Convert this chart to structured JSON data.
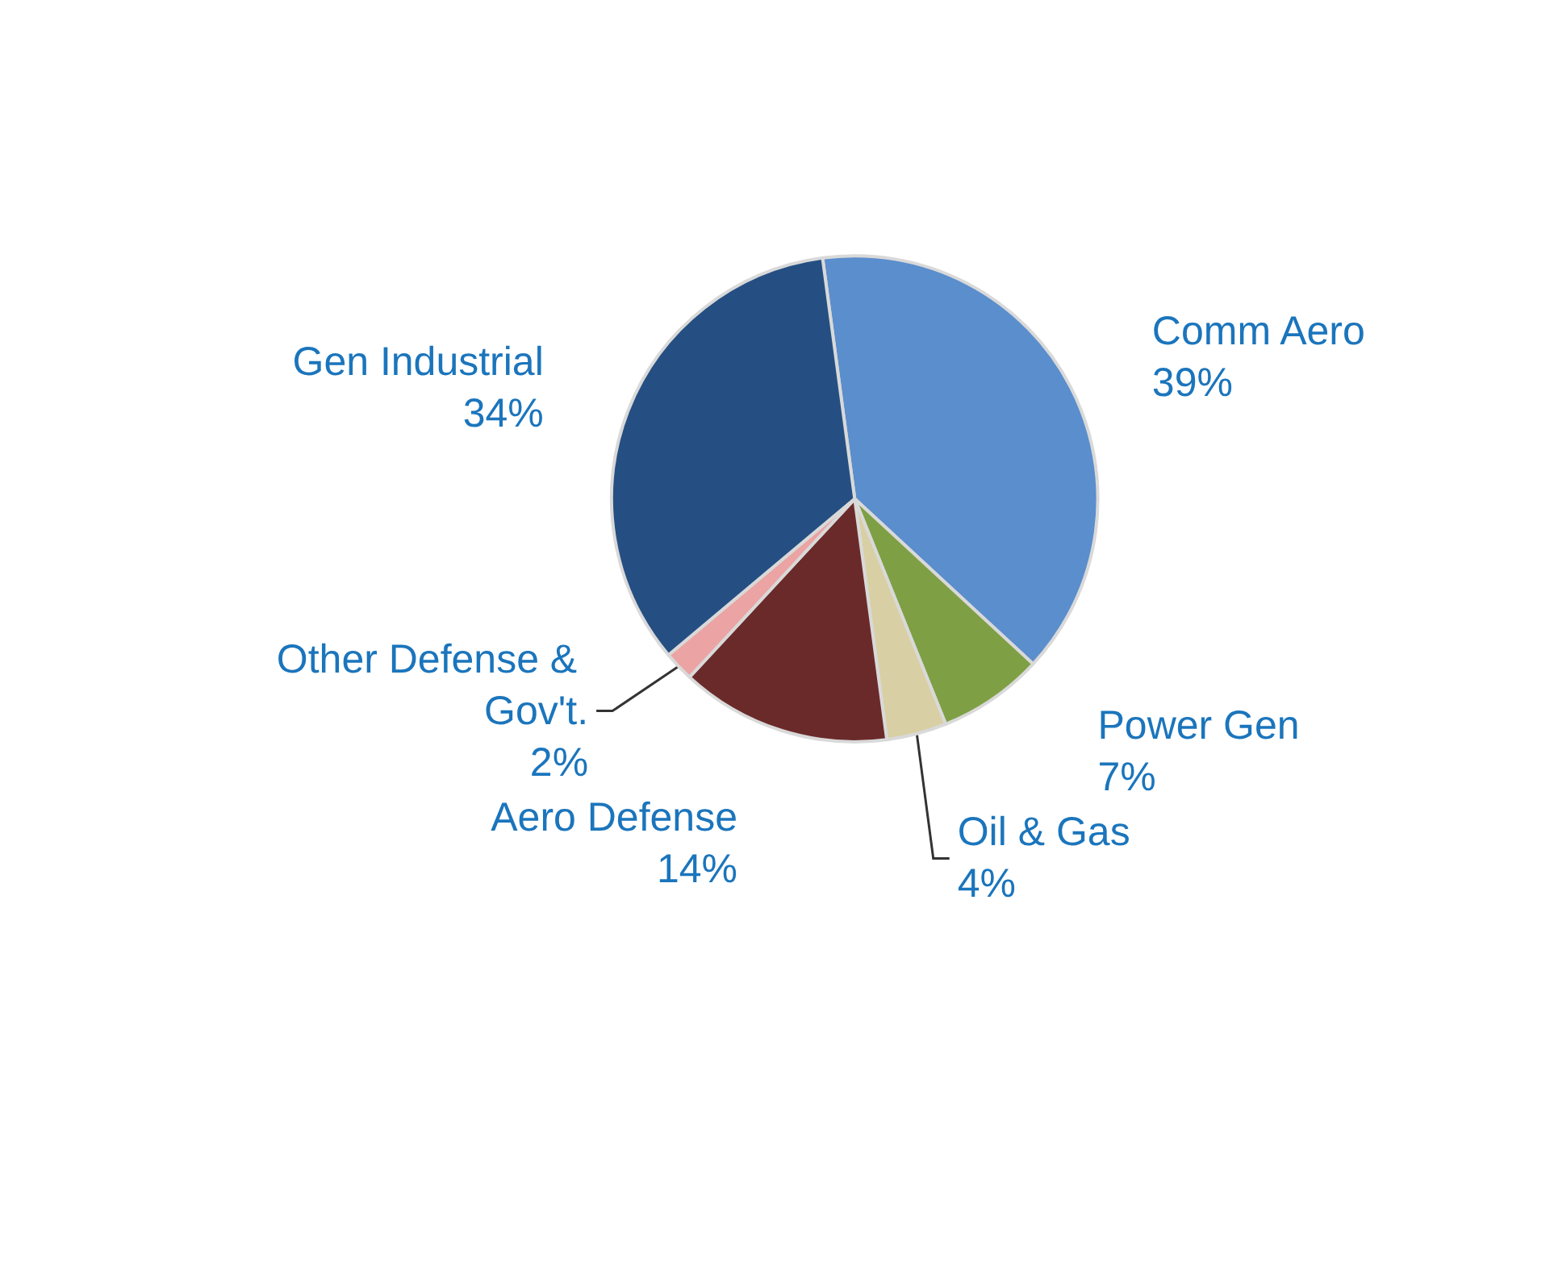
{
  "chart_data": {
    "type": "pie",
    "categories": [
      "Comm Aero",
      "Power Gen",
      "Oil & Gas",
      "Aero Defense",
      "Other Defense & Gov't.",
      "Gen Industrial"
    ],
    "values": [
      39,
      7,
      4,
      14,
      2,
      34
    ],
    "value_labels": [
      "39%",
      "7%",
      "4%",
      "14%",
      "2%",
      "34%"
    ],
    "colors": [
      "#5a8ecd",
      "#7f9f45",
      "#d8cfa4",
      "#6b2a2a",
      "#eba3a3",
      "#254f82"
    ],
    "legend": false
  }
}
